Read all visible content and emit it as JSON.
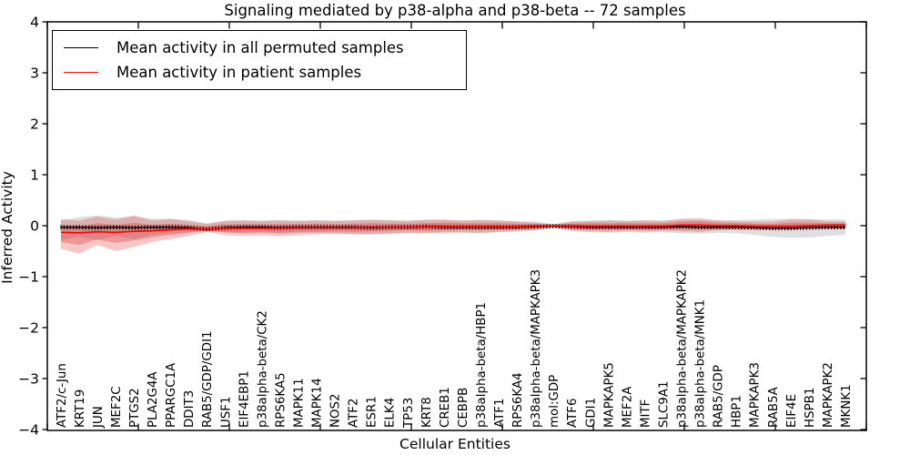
{
  "chart_data": {
    "type": "line",
    "title": "Signaling mediated by p38-alpha and p38-beta -- 72 samples",
    "xlabel": "Cellular Entities",
    "ylabel": "Inferred Activity",
    "ylim": [
      -4,
      4
    ],
    "ytick_values": [
      4,
      3,
      2,
      1,
      0,
      -1,
      -2,
      -3,
      -4
    ],
    "ytick_labels": [
      "4",
      "3",
      "2",
      "1",
      "0",
      "−1",
      "−2",
      "−3",
      "−4"
    ],
    "grid": false,
    "legend_position": "upper left",
    "n_samples": 72,
    "categories": [
      "ATF2/c-Jun",
      "KRT19",
      "JUN",
      "MEF2C",
      "PTGS2",
      "PLA2G4A",
      "PPARGC1A",
      "DDIT3",
      "RAB5/GDP/GDI1",
      "USF1",
      "EIF4EBP1",
      "p38alpha-beta/CK2",
      "RPS6KA5",
      "MAPK11",
      "MAPK14",
      "NOS2",
      "ATF2",
      "ESR1",
      "ELK4",
      "TP53",
      "KRT8",
      "CREB1",
      "CEBPB",
      "p38alpha-beta/HBP1",
      "ATF1",
      "RPS6KA4",
      "p38alpha-beta/MAPKAPK3",
      "mol:GDP",
      "ATF6",
      "GDI1",
      "MAPKAPK5",
      "MEF2A",
      "MITF",
      "SLC9A1",
      "p38alpha-beta/MAPKAPK2",
      "p38alpha-beta/MNK1",
      "RAB5/GDP",
      "HBP1",
      "MAPKAPK3",
      "RAB5A",
      "EIF4E",
      "HSPB1",
      "MAPKAPK2",
      "MKNK1"
    ],
    "series": [
      {
        "name": "Mean activity in all permuted samples",
        "color": "#000000",
        "values": [
          -0.03,
          -0.03,
          -0.04,
          -0.03,
          -0.04,
          -0.03,
          -0.03,
          -0.04,
          -0.07,
          -0.04,
          -0.03,
          -0.03,
          -0.04,
          -0.03,
          -0.03,
          -0.03,
          -0.03,
          -0.04,
          -0.03,
          -0.03,
          -0.02,
          -0.03,
          -0.03,
          -0.03,
          -0.03,
          -0.03,
          -0.02,
          -0.01,
          -0.02,
          -0.03,
          -0.03,
          -0.03,
          -0.03,
          -0.03,
          -0.02,
          -0.03,
          -0.03,
          -0.03,
          -0.04,
          -0.05,
          -0.05,
          -0.04,
          -0.03,
          -0.03
        ]
      },
      {
        "name": "Mean activity in patient samples",
        "color": "#ff0000",
        "values": [
          -0.13,
          -0.14,
          -0.12,
          -0.13,
          -0.11,
          -0.1,
          -0.08,
          -0.06,
          -0.06,
          -0.05,
          -0.05,
          -0.05,
          -0.05,
          -0.04,
          -0.04,
          -0.04,
          -0.04,
          -0.03,
          -0.03,
          -0.03,
          -0.02,
          -0.02,
          -0.02,
          -0.02,
          -0.02,
          -0.02,
          -0.01,
          0.0,
          -0.01,
          -0.01,
          -0.01,
          -0.01,
          -0.01,
          -0.01,
          0.01,
          0.01,
          0.0,
          0.0,
          -0.01,
          -0.01,
          -0.01,
          0.0,
          0.01,
          0.01
        ]
      }
    ],
    "bands": [
      {
        "name": "permuted-samples-range",
        "color": "#8c8c8c",
        "opacity": 0.28,
        "upper": [
          0.1,
          0.17,
          0.2,
          0.16,
          0.18,
          0.14,
          0.13,
          0.11,
          0.05,
          0.1,
          0.11,
          0.1,
          0.11,
          0.1,
          0.11,
          0.1,
          0.11,
          0.12,
          0.11,
          0.1,
          0.12,
          0.11,
          0.1,
          0.11,
          0.1,
          0.09,
          0.08,
          0.03,
          0.09,
          0.1,
          0.11,
          0.1,
          0.11,
          0.1,
          0.12,
          0.11,
          0.1,
          0.11,
          0.12,
          0.13,
          0.14,
          0.13,
          0.12,
          0.12
        ],
        "lower": [
          -0.28,
          -0.22,
          -0.28,
          -0.2,
          -0.26,
          -0.18,
          -0.15,
          -0.13,
          -0.09,
          -0.13,
          -0.15,
          -0.14,
          -0.16,
          -0.15,
          -0.14,
          -0.15,
          -0.16,
          -0.18,
          -0.17,
          -0.15,
          -0.14,
          -0.13,
          -0.14,
          -0.15,
          -0.13,
          -0.12,
          -0.1,
          -0.04,
          -0.11,
          -0.13,
          -0.14,
          -0.13,
          -0.14,
          -0.13,
          -0.15,
          -0.16,
          -0.14,
          -0.15,
          -0.18,
          -0.22,
          -0.24,
          -0.23,
          -0.2,
          -0.18
        ]
      },
      {
        "name": "patient-samples-range-outer",
        "color": "#dc2828",
        "opacity": 0.26,
        "upper": [
          0.13,
          0.1,
          0.18,
          0.12,
          0.2,
          0.1,
          0.14,
          0.09,
          0.03,
          0.09,
          0.1,
          0.09,
          0.1,
          0.09,
          0.1,
          0.09,
          0.1,
          0.11,
          0.1,
          0.09,
          0.11,
          0.12,
          0.1,
          0.11,
          0.1,
          0.08,
          0.06,
          0.02,
          0.08,
          0.09,
          0.1,
          0.09,
          0.1,
          0.09,
          0.14,
          0.15,
          0.1,
          0.09,
          0.08,
          0.08,
          0.12,
          0.12,
          0.09,
          0.08
        ],
        "lower": [
          -0.45,
          -0.55,
          -0.38,
          -0.5,
          -0.42,
          -0.32,
          -0.26,
          -0.2,
          -0.12,
          -0.18,
          -0.2,
          -0.19,
          -0.21,
          -0.18,
          -0.17,
          -0.16,
          -0.17,
          -0.16,
          -0.15,
          -0.14,
          -0.15,
          -0.14,
          -0.13,
          -0.14,
          -0.12,
          -0.1,
          -0.08,
          -0.02,
          -0.09,
          -0.11,
          -0.12,
          -0.1,
          -0.11,
          -0.1,
          -0.11,
          -0.12,
          -0.09,
          -0.08,
          -0.08,
          -0.07,
          -0.06,
          -0.06,
          -0.07,
          -0.06
        ]
      },
      {
        "name": "patient-samples-range-inner",
        "color": "#dc2828",
        "opacity": 0.3,
        "upper": [
          0.01,
          -0.01,
          0.05,
          0.01,
          0.06,
          0.01,
          0.04,
          0.02,
          -0.01,
          0.03,
          0.03,
          0.03,
          0.03,
          0.03,
          0.04,
          0.03,
          0.04,
          0.05,
          0.04,
          0.04,
          0.05,
          0.06,
          0.05,
          0.05,
          0.05,
          0.04,
          0.03,
          0.01,
          0.04,
          0.05,
          0.05,
          0.05,
          0.05,
          0.05,
          0.08,
          0.09,
          0.06,
          0.05,
          0.04,
          0.03,
          0.06,
          0.06,
          0.05,
          0.05
        ],
        "lower": [
          -0.32,
          -0.38,
          -0.27,
          -0.34,
          -0.29,
          -0.23,
          -0.18,
          -0.14,
          -0.1,
          -0.13,
          -0.14,
          -0.13,
          -0.14,
          -0.12,
          -0.12,
          -0.11,
          -0.12,
          -0.11,
          -0.1,
          -0.09,
          -0.1,
          -0.09,
          -0.08,
          -0.09,
          -0.08,
          -0.07,
          -0.05,
          -0.01,
          -0.06,
          -0.07,
          -0.07,
          -0.06,
          -0.07,
          -0.06,
          -0.06,
          -0.07,
          -0.05,
          -0.05,
          -0.05,
          -0.05,
          -0.04,
          -0.03,
          -0.04,
          -0.03
        ]
      }
    ]
  },
  "legend": {
    "items": [
      {
        "label": "Mean activity in all permuted samples",
        "color": "#000000"
      },
      {
        "label": "Mean activity in patient samples",
        "color": "#ff0000"
      }
    ]
  }
}
